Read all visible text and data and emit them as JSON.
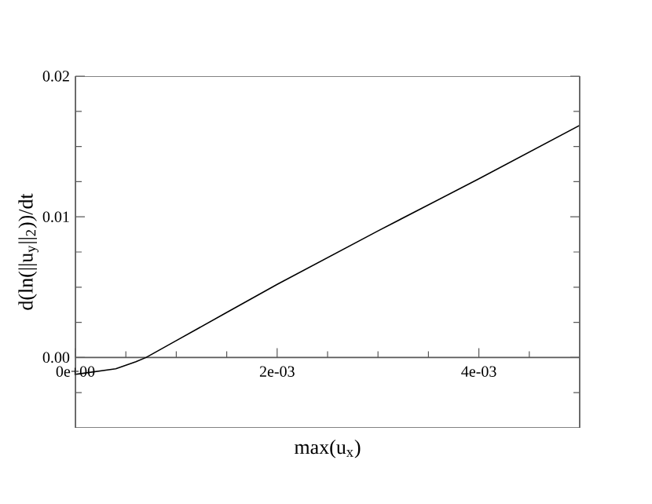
{
  "chart_data": {
    "type": "line",
    "xlabel": "max(u$_{x}$)",
    "ylabel": "d(ln(||u$_{y}$||$_{2}$))/dt",
    "x": [
      0,
      0.0002,
      0.0004,
      0.0006,
      0.0007,
      0.001,
      0.0015,
      0.002,
      0.003,
      0.004,
      0.005
    ],
    "series": [
      {
        "color": "#000000",
        "values": [
          -0.0012,
          -0.001,
          -0.0008,
          -0.0003,
          0,
          0.0012,
          0.0032,
          0.0052,
          0.009,
          0.0127,
          0.0165
        ]
      }
    ],
    "xlim": [
      0,
      0.005
    ],
    "ylim": [
      -0.005,
      0.02
    ],
    "xticks": [
      {
        "value": 0,
        "label": "0e+00"
      },
      {
        "value": 0.0005,
        "label": null
      },
      {
        "value": 0.001,
        "label": null
      },
      {
        "value": 0.0015,
        "label": null
      },
      {
        "value": 0.002,
        "label": "2e-03"
      },
      {
        "value": 0.0025,
        "label": null
      },
      {
        "value": 0.003,
        "label": null
      },
      {
        "value": 0.0035,
        "label": null
      },
      {
        "value": 0.004,
        "label": "4e-03"
      },
      {
        "value": 0.0045,
        "label": null
      }
    ],
    "yticks": [
      {
        "value": -0.0025,
        "label": null
      },
      {
        "value": 0,
        "label": "0.00"
      },
      {
        "value": 0.0025,
        "label": null
      },
      {
        "value": 0.005,
        "label": null
      },
      {
        "value": 0.0075,
        "label": null
      },
      {
        "value": 0.01,
        "label": "0.01"
      },
      {
        "value": 0.0125,
        "label": null
      },
      {
        "value": 0.015,
        "label": null
      },
      {
        "value": 0.0175,
        "label": null
      },
      {
        "value": 0.02,
        "label": "0.02"
      }
    ],
    "marker": "none",
    "line_style": "solid"
  }
}
